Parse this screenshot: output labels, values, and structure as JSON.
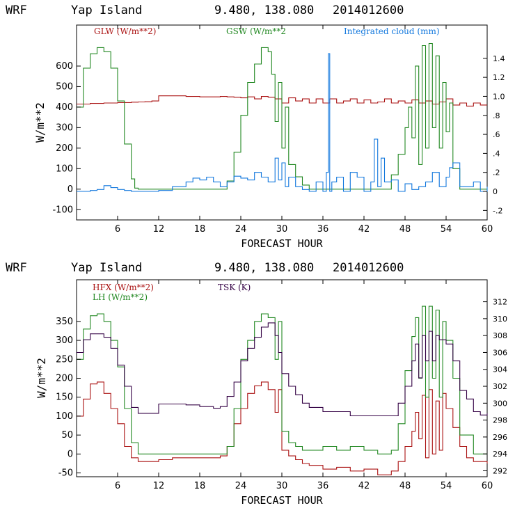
{
  "chart_data": [
    {
      "type": "line",
      "header": {
        "model": "WRF",
        "location": "Yap Island",
        "coords": "9.480, 138.080",
        "date": "2014012600"
      },
      "xlabel": "FORECAST HOUR",
      "ylabel": "W/m**2",
      "xlim": [
        0,
        60
      ],
      "ylim": [
        -150,
        800
      ],
      "xticks": [
        "6",
        "12",
        "18",
        "24",
        "30",
        "36",
        "42",
        "48",
        "54",
        "60"
      ],
      "yticks": [
        "-100",
        "0",
        "100",
        "200",
        "300",
        "400",
        "500",
        "600"
      ],
      "y2lim": [
        -0.3,
        1.75
      ],
      "y2ticks": [
        "-.2",
        "0",
        ".2",
        ".4",
        ".6",
        ".8",
        "1.0",
        "1.2",
        "1.4"
      ],
      "colors": {
        "GLW": "#aa1111",
        "GSW": "#228822",
        "cloud": "#1177dd"
      },
      "series": [
        {
          "name": "GLW (W/m**2)",
          "key": "GLW",
          "axis": "left",
          "x": [
            0,
            2,
            4,
            6,
            8,
            9,
            10,
            11,
            12,
            14,
            16,
            18,
            20,
            21,
            22,
            23,
            24,
            25,
            26,
            27,
            28,
            29,
            30,
            31,
            32,
            33,
            34,
            35,
            36,
            37,
            38,
            39,
            40,
            41,
            42,
            43,
            44,
            45,
            46,
            47,
            48,
            49,
            50,
            51,
            52,
            53,
            54,
            55,
            56,
            57,
            58,
            59,
            60
          ],
          "y": [
            415,
            418,
            420,
            422,
            424,
            425,
            426,
            430,
            455,
            455,
            452,
            450,
            450,
            452,
            450,
            448,
            445,
            450,
            440,
            452,
            448,
            440,
            420,
            445,
            430,
            440,
            420,
            440,
            420,
            440,
            420,
            430,
            440,
            420,
            435,
            420,
            425,
            440,
            420,
            430,
            420,
            435,
            420,
            430,
            415,
            425,
            440,
            410,
            420,
            405,
            420,
            410,
            410
          ]
        },
        {
          "name": "GSW (W/m**2",
          "key": "GSW",
          "axis": "left",
          "x": [
            0,
            1,
            2,
            3,
            4,
            5,
            6,
            7,
            8,
            8.5,
            9,
            21,
            22,
            23,
            24,
            25,
            26,
            27,
            28,
            28.5,
            29,
            29.5,
            30,
            30.5,
            31,
            32,
            33,
            34,
            45,
            46,
            47,
            48,
            48.5,
            49,
            49.5,
            50,
            50.5,
            51,
            51.5,
            52,
            52.5,
            53,
            53.5,
            54,
            54.5,
            55,
            56,
            60
          ],
          "y": [
            400,
            590,
            660,
            690,
            670,
            590,
            430,
            220,
            50,
            5,
            0,
            0,
            40,
            180,
            360,
            520,
            610,
            690,
            670,
            560,
            330,
            520,
            200,
            400,
            120,
            60,
            20,
            0,
            0,
            70,
            170,
            300,
            400,
            250,
            600,
            120,
            700,
            200,
            710,
            300,
            650,
            200,
            520,
            280,
            420,
            100,
            0,
            0
          ]
        },
        {
          "name": "Integrated cloud (mm)",
          "key": "cloud",
          "axis": "right",
          "x": [
            0,
            2,
            3,
            4,
            5,
            6,
            7,
            8,
            9,
            10,
            12,
            14,
            16,
            17,
            18,
            19,
            20,
            21,
            22,
            23,
            24,
            25,
            26,
            27,
            28,
            29,
            29.5,
            30,
            30.5,
            31,
            32,
            33,
            34,
            35,
            36,
            36.5,
            36.8,
            37,
            37.3,
            38,
            39,
            40,
            41,
            42,
            43,
            43.5,
            44,
            44.5,
            45,
            46,
            47,
            48,
            49,
            50,
            51,
            52,
            53,
            54,
            54.5,
            55,
            56,
            57,
            58,
            59,
            60
          ],
          "y": [
            0,
            0.01,
            0.02,
            0.06,
            0.04,
            0.02,
            0.01,
            0.0,
            0.0,
            0.0,
            0.01,
            0.05,
            0.1,
            0.14,
            0.12,
            0.15,
            0.1,
            0.05,
            0.1,
            0.16,
            0.14,
            0.12,
            0.2,
            0.15,
            0.1,
            0.35,
            0.12,
            0.3,
            0.05,
            0.15,
            0.05,
            0.02,
            0.0,
            0.1,
            0.0,
            0.2,
            1.45,
            0.0,
            0.1,
            0.15,
            0.0,
            0.2,
            0.15,
            0.0,
            0.1,
            0.55,
            0.05,
            0.35,
            0.1,
            0.12,
            0.0,
            0.08,
            0.02,
            0.05,
            0.1,
            0.2,
            0.05,
            0.15,
            0.25,
            0.3,
            0.05,
            0.05,
            0.1,
            0.0,
            0.05
          ]
        }
      ]
    },
    {
      "type": "line",
      "header": {
        "model": "WRF",
        "location": "Yap Island",
        "coords": "9.480, 138.080",
        "date": "2014012600"
      },
      "xlabel": "FORECAST HOUR",
      "ylabel": "W/m**2",
      "xlim": [
        0,
        60
      ],
      "ylim": [
        -60,
        460
      ],
      "xticks": [
        "6",
        "12",
        "18",
        "24",
        "30",
        "36",
        "42",
        "48",
        "54",
        "60"
      ],
      "yticks": [
        "-50",
        "0",
        "50",
        "100",
        "150",
        "200",
        "250",
        "300",
        "350"
      ],
      "y2lim": [
        291.3,
        314.6
      ],
      "y2ticks": [
        "292",
        "294",
        "296",
        "298",
        "300",
        "302",
        "304",
        "306",
        "308",
        "310",
        "312"
      ],
      "colors": {
        "HFX": "#aa1111",
        "LH": "#228822",
        "TSK": "#330044"
      },
      "series": [
        {
          "name": "HFX (W/m**2)",
          "key": "HFX",
          "axis": "left",
          "x": [
            0,
            1,
            2,
            3,
            4,
            5,
            6,
            7,
            8,
            9,
            12,
            14,
            18,
            21,
            22,
            23,
            24,
            25,
            26,
            27,
            28,
            29,
            29.5,
            30,
            31,
            32,
            33,
            34,
            35,
            36,
            38,
            40,
            42,
            44,
            46,
            47,
            48,
            49,
            49.5,
            50,
            50.5,
            51,
            51.5,
            52,
            52.5,
            53,
            53.5,
            54,
            55,
            56,
            57,
            58,
            60
          ],
          "y": [
            100,
            145,
            185,
            190,
            160,
            120,
            80,
            20,
            -10,
            -20,
            -15,
            -10,
            -10,
            -5,
            20,
            80,
            120,
            160,
            180,
            190,
            170,
            110,
            170,
            10,
            -5,
            -15,
            -25,
            -30,
            -30,
            -40,
            -35,
            -45,
            -40,
            -55,
            -45,
            -20,
            20,
            60,
            110,
            40,
            155,
            -10,
            170,
            0,
            140,
            10,
            160,
            120,
            70,
            20,
            -10,
            -20,
            -25
          ]
        },
        {
          "name": "LH  (W/m**2)",
          "key": "LH",
          "axis": "left",
          "x": [
            0,
            1,
            2,
            3,
            4,
            5,
            6,
            7,
            8,
            9,
            12,
            14,
            18,
            21,
            22,
            23,
            24,
            25,
            26,
            27,
            28,
            29,
            29.5,
            30,
            31,
            32,
            33,
            34,
            36,
            38,
            40,
            42,
            44,
            46,
            47,
            48,
            49,
            49.5,
            50,
            50.5,
            51,
            51.5,
            52,
            52.5,
            53,
            53.5,
            54,
            55,
            56,
            58,
            60
          ],
          "y": [
            250,
            330,
            365,
            370,
            350,
            300,
            230,
            120,
            30,
            0,
            0,
            0,
            0,
            0,
            20,
            120,
            250,
            300,
            350,
            370,
            360,
            250,
            350,
            60,
            30,
            20,
            10,
            10,
            20,
            10,
            20,
            10,
            0,
            10,
            80,
            220,
            310,
            360,
            200,
            390,
            150,
            390,
            200,
            380,
            150,
            350,
            300,
            200,
            50,
            0,
            0
          ]
        },
        {
          "name": "TSK (K)",
          "key": "TSK",
          "axis": "right",
          "x": [
            0,
            1,
            2,
            3,
            4,
            5,
            6,
            7,
            8,
            9,
            10,
            11,
            11.5,
            12,
            14,
            16,
            18,
            20,
            21,
            22,
            23,
            24,
            25,
            26,
            27,
            28,
            29,
            29.5,
            30,
            31,
            32,
            33,
            34,
            35,
            36,
            38,
            40,
            42,
            44,
            46,
            47,
            48,
            49,
            49.5,
            50,
            50.5,
            51,
            51.5,
            52,
            52.5,
            53,
            54,
            55,
            56,
            57,
            58,
            59,
            60
          ],
          "y": [
            306,
            307.5,
            308.2,
            308.2,
            307.8,
            306.5,
            304.5,
            302,
            299.5,
            298.8,
            298.8,
            298.8,
            298.8,
            299.9,
            299.9,
            299.8,
            299.6,
            299.4,
            299.6,
            300.8,
            302.5,
            305,
            306.5,
            307.8,
            309,
            309.5,
            308,
            306,
            303.5,
            302,
            301,
            300,
            299.5,
            299.5,
            299,
            299,
            298.5,
            298.5,
            298.5,
            298.5,
            300,
            302,
            305,
            307,
            303,
            308,
            305,
            308.5,
            305,
            308,
            307.5,
            307,
            305,
            301.5,
            300.5,
            299,
            298.6,
            298.8
          ]
        }
      ]
    }
  ]
}
